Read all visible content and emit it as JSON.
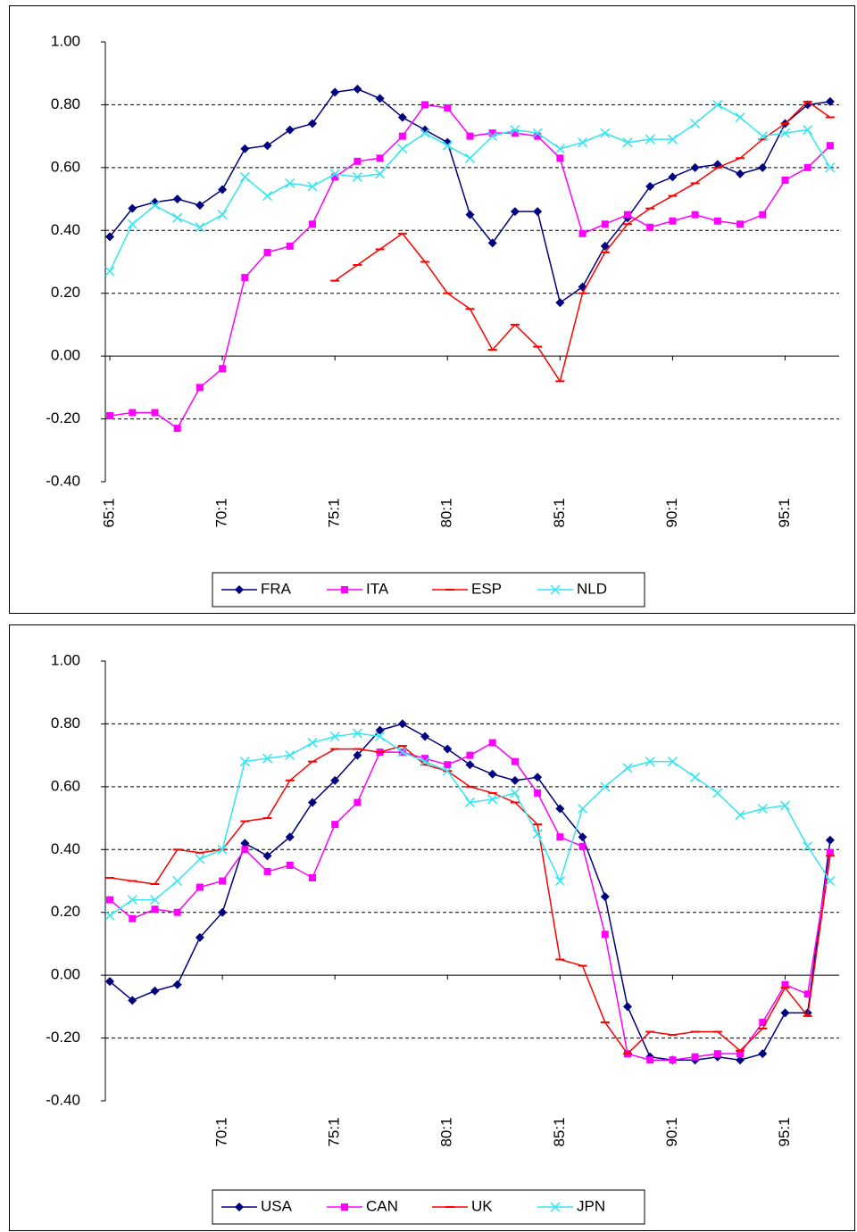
{
  "chart_data": [
    {
      "type": "line",
      "x": [
        1965,
        1966,
        1967,
        1968,
        1969,
        1970,
        1971,
        1972,
        1973,
        1974,
        1975,
        1976,
        1977,
        1978,
        1979,
        1980,
        1981,
        1982,
        1983,
        1984,
        1985,
        1986,
        1987,
        1988,
        1989,
        1990,
        1991,
        1992,
        1993,
        1994,
        1995,
        1996,
        1997
      ],
      "xlim": [
        1964.8,
        1997.4
      ],
      "xticks": [
        {
          "value": 1965,
          "label": "65:1"
        },
        {
          "value": 1970,
          "label": "70:1"
        },
        {
          "value": 1975,
          "label": "75:1"
        },
        {
          "value": 1980,
          "label": "80:1"
        },
        {
          "value": 1985,
          "label": "85:1"
        },
        {
          "value": 1990,
          "label": "90:1"
        },
        {
          "value": 1995,
          "label": "95:1"
        }
      ],
      "ylim": [
        -0.4,
        1
      ],
      "yticks": [
        {
          "value": -0.4,
          "label": "-0.40"
        },
        {
          "value": -0.2,
          "label": "-0.20"
        },
        {
          "value": 0,
          "label": "0.00"
        },
        {
          "value": 0.2,
          "label": "0.20"
        },
        {
          "value": 0.4,
          "label": "0.40"
        },
        {
          "value": 0.6,
          "label": "0.60"
        },
        {
          "value": 0.8,
          "label": "0.80"
        },
        {
          "value": 1,
          "label": "1.00"
        }
      ],
      "grid": true,
      "legend": "bottom",
      "series": [
        {
          "name": "FRA",
          "color": "#000080",
          "marker": "diamond",
          "values": [
            0.38,
            0.47,
            0.49,
            0.5,
            0.48,
            0.53,
            0.66,
            0.67,
            0.72,
            0.74,
            0.84,
            0.85,
            0.82,
            0.76,
            0.72,
            0.68,
            0.45,
            0.36,
            0.46,
            0.46,
            0.17,
            0.22,
            0.35,
            0.44,
            0.54,
            0.57,
            0.6,
            0.61,
            0.58,
            0.6,
            0.74,
            0.8,
            0.81
          ]
        },
        {
          "name": "ITA",
          "color": "#ff00ff",
          "marker": "square",
          "values": [
            -0.19,
            -0.18,
            -0.18,
            -0.23,
            -0.1,
            -0.04,
            0.25,
            0.33,
            0.35,
            0.42,
            0.57,
            0.62,
            0.63,
            0.7,
            0.8,
            0.79,
            0.7,
            0.71,
            0.71,
            0.7,
            0.63,
            0.39,
            0.42,
            0.45,
            0.41,
            0.43,
            0.45,
            0.43,
            0.42,
            0.45,
            0.56,
            0.6,
            0.67
          ]
        },
        {
          "name": "ESP",
          "color": "#ff0000",
          "marker": "dash",
          "values": [
            null,
            null,
            null,
            null,
            null,
            null,
            null,
            null,
            null,
            null,
            0.24,
            0.29,
            0.34,
            0.39,
            0.3,
            0.2,
            0.15,
            0.02,
            0.1,
            0.03,
            -0.08,
            0.2,
            0.33,
            0.42,
            0.47,
            0.51,
            0.55,
            0.6,
            0.63,
            0.69,
            0.74,
            0.81,
            0.76
          ]
        },
        {
          "name": "NLD",
          "color": "#33e6f0",
          "marker": "x",
          "values": [
            0.27,
            0.42,
            0.48,
            0.44,
            0.41,
            0.45,
            0.57,
            0.51,
            0.55,
            0.54,
            0.58,
            0.57,
            0.58,
            0.66,
            0.71,
            0.67,
            0.63,
            0.7,
            0.72,
            0.71,
            0.66,
            0.68,
            0.71,
            0.68,
            0.69,
            0.69,
            0.74,
            0.8,
            0.76,
            0.7,
            0.71,
            0.72,
            0.6
          ]
        }
      ]
    },
    {
      "type": "line",
      "x": [
        1965,
        1966,
        1967,
        1968,
        1969,
        1970,
        1971,
        1972,
        1973,
        1974,
        1975,
        1976,
        1977,
        1978,
        1979,
        1980,
        1981,
        1982,
        1983,
        1984,
        1985,
        1986,
        1987,
        1988,
        1989,
        1990,
        1991,
        1992,
        1993,
        1994,
        1995,
        1996,
        1997
      ],
      "xlim": [
        1964.8,
        1997.4
      ],
      "xticks": [
        {
          "value": 1970,
          "label": "70:1"
        },
        {
          "value": 1975,
          "label": "75:1"
        },
        {
          "value": 1980,
          "label": "80:1"
        },
        {
          "value": 1985,
          "label": "85:1"
        },
        {
          "value": 1990,
          "label": "90:1"
        },
        {
          "value": 1995,
          "label": "95:1"
        }
      ],
      "ylim": [
        -0.4,
        1
      ],
      "yticks": [
        {
          "value": -0.4,
          "label": "-0.40"
        },
        {
          "value": -0.2,
          "label": "-0.20"
        },
        {
          "value": 0,
          "label": "0.00"
        },
        {
          "value": 0.2,
          "label": "0.20"
        },
        {
          "value": 0.4,
          "label": "0.40"
        },
        {
          "value": 0.6,
          "label": "0.60"
        },
        {
          "value": 0.8,
          "label": "0.80"
        },
        {
          "value": 1,
          "label": "1.00"
        }
      ],
      "grid": true,
      "legend": "bottom",
      "series": [
        {
          "name": "USA",
          "color": "#000080",
          "marker": "diamond",
          "values": [
            -0.02,
            -0.08,
            -0.05,
            -0.03,
            0.12,
            0.2,
            0.42,
            0.38,
            0.44,
            0.55,
            0.62,
            0.7,
            0.78,
            0.8,
            0.76,
            0.72,
            0.67,
            0.64,
            0.62,
            0.63,
            0.53,
            0.44,
            0.25,
            -0.1,
            -0.26,
            -0.27,
            -0.27,
            -0.26,
            -0.27,
            -0.25,
            -0.12,
            -0.12,
            0.43
          ]
        },
        {
          "name": "CAN",
          "color": "#ff00ff",
          "marker": "square",
          "values": [
            0.24,
            0.18,
            0.21,
            0.2,
            0.28,
            0.3,
            0.4,
            0.33,
            0.35,
            0.31,
            0.48,
            0.55,
            0.71,
            0.71,
            0.69,
            0.67,
            0.7,
            0.74,
            0.68,
            0.58,
            0.44,
            0.41,
            0.13,
            -0.25,
            -0.27,
            -0.27,
            -0.26,
            -0.25,
            -0.25,
            -0.15,
            -0.03,
            -0.06,
            0.39
          ]
        },
        {
          "name": "UK",
          "color": "#ff0000",
          "marker": "dash",
          "values": [
            0.31,
            0.3,
            0.29,
            0.4,
            0.39,
            0.4,
            0.49,
            0.5,
            0.62,
            0.68,
            0.72,
            0.72,
            0.71,
            0.73,
            0.67,
            0.65,
            0.6,
            0.58,
            0.55,
            0.48,
            0.05,
            0.03,
            -0.15,
            -0.25,
            -0.18,
            -0.19,
            -0.18,
            -0.18,
            -0.24,
            -0.17,
            -0.04,
            -0.13,
            0.38
          ]
        },
        {
          "name": "JPN",
          "color": "#33e6f0",
          "marker": "x",
          "values": [
            0.19,
            0.24,
            0.24,
            0.3,
            0.37,
            0.4,
            0.68,
            0.69,
            0.7,
            0.74,
            0.76,
            0.77,
            0.76,
            0.71,
            0.68,
            0.65,
            0.55,
            0.56,
            0.58,
            0.45,
            0.3,
            0.53,
            0.6,
            0.66,
            0.68,
            0.68,
            0.63,
            0.58,
            0.51,
            0.53,
            0.54,
            0.41,
            0.3
          ]
        }
      ]
    }
  ]
}
